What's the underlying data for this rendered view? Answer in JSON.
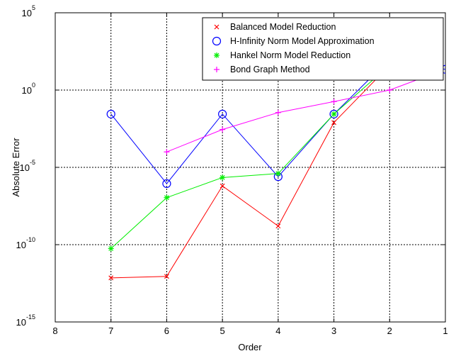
{
  "chart_data": {
    "type": "line",
    "title": "",
    "xlabel": "Order",
    "ylabel": "Absolute Error",
    "x_reversed": true,
    "y_scale": "log",
    "xlim": [
      8,
      1
    ],
    "ylim": [
      1e-15,
      100000
    ],
    "x_ticks": [
      "8",
      "7",
      "6",
      "5",
      "4",
      "3",
      "2",
      "1"
    ],
    "y_ticks": [
      {
        "base": "10",
        "exp": "-15"
      },
      {
        "base": "10",
        "exp": "-10"
      },
      {
        "base": "10",
        "exp": "-5"
      },
      {
        "base": "10",
        "exp": "0"
      },
      {
        "base": "10",
        "exp": "5"
      }
    ],
    "grid": true,
    "legend_position": "top-right",
    "series": [
      {
        "name": "Balanced Model Reduction",
        "color": "#ff0000",
        "marker": "x",
        "x": [
          7,
          6,
          5,
          4,
          3,
          2,
          1.2
        ],
        "y": [
          7.1e-13,
          8.9e-13,
          6.3e-07,
          1.6e-09,
          0.0079,
          40,
          10
        ]
      },
      {
        "name": "H-Infinity Norm Model Approximation",
        "color": "#0000ff",
        "marker": "o",
        "x": [
          7,
          6,
          5,
          4,
          3,
          2,
          1
        ],
        "y": [
          0.028,
          8.9e-07,
          0.028,
          2.5e-06,
          0.028,
          100,
          22
        ]
      },
      {
        "name": "Hankel Norm Model Reduction",
        "color": "#00ee00",
        "marker": "*",
        "x": [
          7,
          6,
          5,
          4,
          3,
          2,
          1.2
        ],
        "y": [
          5.6e-11,
          1.1e-07,
          2.2e-06,
          4e-06,
          0.028,
          40,
          12
        ]
      },
      {
        "name": "Bond Graph Method",
        "color": "#ff00ff",
        "marker": "+",
        "x": [
          6,
          5,
          4,
          3,
          2,
          1.2
        ],
        "y": [
          0.0001,
          0.0028,
          0.035,
          0.18,
          1,
          12
        ]
      }
    ]
  }
}
